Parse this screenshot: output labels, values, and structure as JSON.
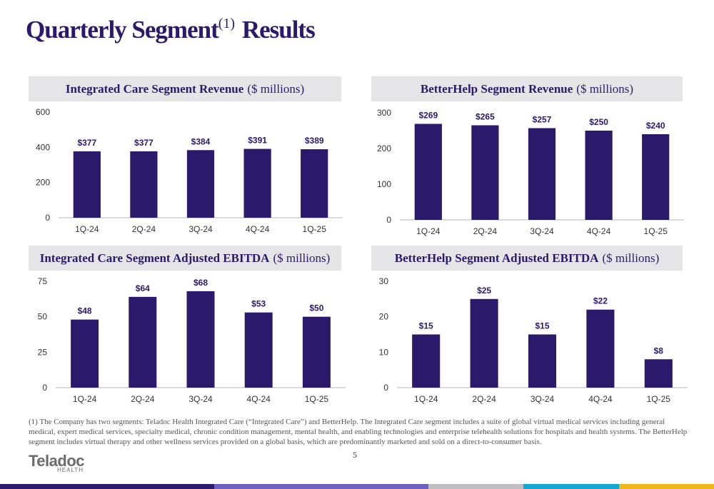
{
  "title": {
    "text": "Quarterly Segment",
    "superscript": "(1)",
    "suffix": "Results"
  },
  "colors": {
    "bar": "#2b1a6b",
    "title": "#2b1a6b",
    "header_bg": "#e5e5e8",
    "footer": [
      "#2b1a6b",
      "#6d5fc0",
      "#bfbfc3",
      "#13a7d6",
      "#f0b71a"
    ]
  },
  "chart_data": [
    {
      "id": "ic-revenue",
      "type": "bar",
      "title_bold": "Integrated Care Segment Revenue",
      "title_unit": "($ millions)",
      "categories": [
        "1Q-24",
        "2Q-24",
        "3Q-24",
        "4Q-24",
        "1Q-25"
      ],
      "values": [
        377,
        377,
        384,
        391,
        389
      ],
      "data_labels": [
        "$377",
        "$377",
        "$384",
        "$391",
        "$389"
      ],
      "ylim": [
        0,
        600
      ],
      "yticks": [
        "0",
        "200",
        "400",
        "600"
      ],
      "grid": false
    },
    {
      "id": "bh-revenue",
      "type": "bar",
      "title_bold": "BetterHelp Segment Revenue",
      "title_unit": "($ millions)",
      "categories": [
        "1Q-24",
        "2Q-24",
        "3Q-24",
        "4Q-24",
        "1Q-25"
      ],
      "values": [
        269,
        265,
        257,
        250,
        240
      ],
      "data_labels": [
        "$269",
        "$265",
        "$257",
        "$250",
        "$240"
      ],
      "ylim": [
        0,
        300
      ],
      "yticks": [
        "0",
        "100",
        "200",
        "300"
      ],
      "grid": false
    },
    {
      "id": "ic-ebitda",
      "type": "bar",
      "title_bold": "Integrated Care Segment Adjusted EBITDA",
      "title_unit": "($ millions)",
      "categories": [
        "1Q-24",
        "2Q-24",
        "3Q-24",
        "4Q-24",
        "1Q-25"
      ],
      "values": [
        48,
        64,
        68,
        53,
        50
      ],
      "data_labels": [
        "$48",
        "$64",
        "$68",
        "$53",
        "$50"
      ],
      "ylim": [
        0,
        75
      ],
      "yticks": [
        "0",
        "25",
        "50",
        "75"
      ],
      "grid": false
    },
    {
      "id": "bh-ebitda",
      "type": "bar",
      "title_bold": "BetterHelp Segment Adjusted EBITDA",
      "title_unit": "($ millions)",
      "categories": [
        "1Q-24",
        "2Q-24",
        "3Q-24",
        "4Q-24",
        "1Q-25"
      ],
      "values": [
        15,
        25,
        15,
        22,
        8
      ],
      "data_labels": [
        "$15",
        "$25",
        "$15",
        "$22",
        "$8"
      ],
      "ylim": [
        0,
        30
      ],
      "yticks": [
        "0",
        "10",
        "20",
        "30"
      ],
      "grid": false
    }
  ],
  "footnote": "(1) The Company has two segments: Teladoc Health Integrated Care (“Integrated Care”) and BetterHelp. The Integrated Care segment includes a suite of global virtual medical services including general medical, expert medical services, specialty medical, chronic condition management, mental health, and enabling technologies and enterprise telehealth solutions for hospitals and health systems. The BetterHelp segment includes virtual therapy and other wellness services provided on a global basis, which are predominantly marketed and sold on a direct-to-consumer basis.",
  "page_number": "5",
  "logo": {
    "word": "Teladoc",
    "sub": "HEALTH"
  }
}
